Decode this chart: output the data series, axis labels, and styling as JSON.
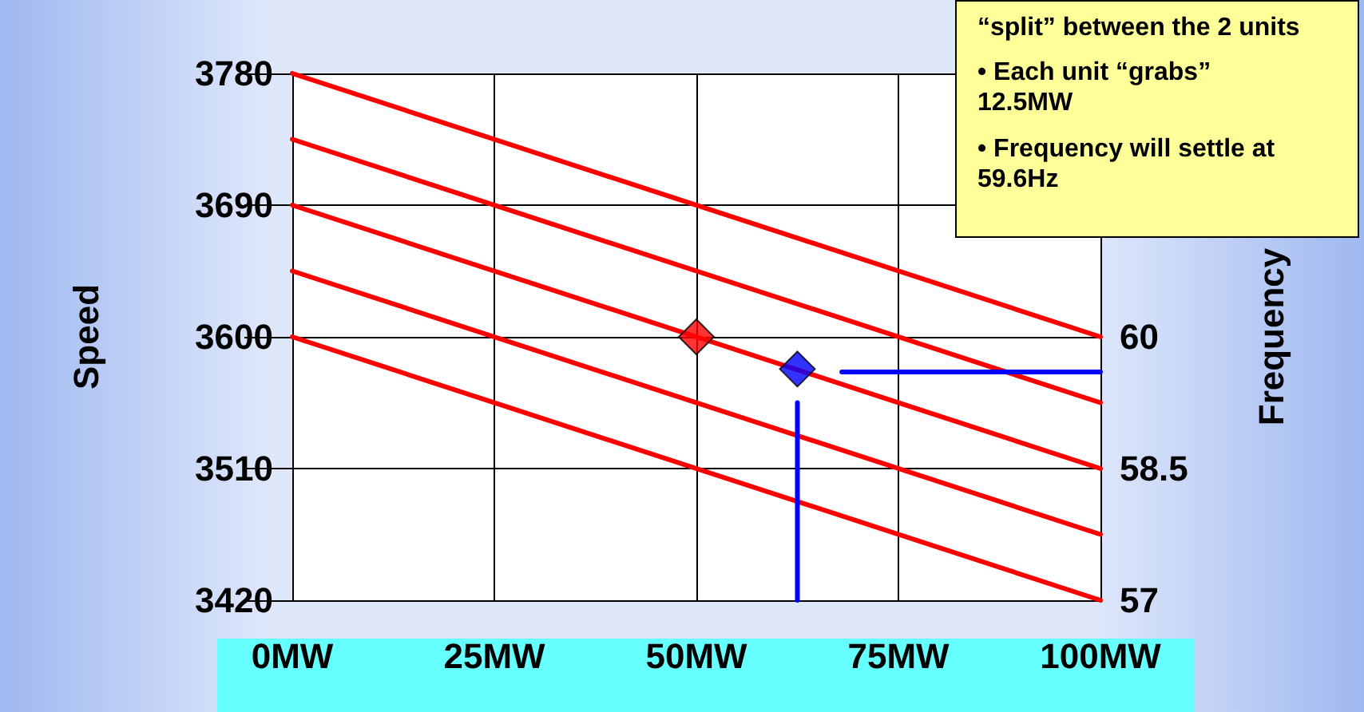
{
  "chart_data": {
    "type": "line",
    "ylabel": "Speed",
    "y2label": "Frequency",
    "annotations": [
      "“split” between the 2 units",
      "• Each unit “grabs” 12.5MW",
      "• Frequency will settle at 59.6Hz"
    ],
    "xlim": [
      0,
      100
    ],
    "xticks": [
      {
        "value": 0,
        "label": "0MW"
      },
      {
        "value": 25,
        "label": "25MW"
      },
      {
        "value": 50,
        "label": "50MW"
      },
      {
        "value": 75,
        "label": "75MW"
      },
      {
        "value": 100,
        "label": "100MW"
      }
    ],
    "ylim": [
      3420,
      3780
    ],
    "yticks": [
      3420,
      3510,
      3600,
      3690,
      3780
    ],
    "y2lim": [
      57,
      63
    ],
    "y2ticks": [
      57,
      58.5,
      60
    ],
    "grid": true,
    "line_style": "solid",
    "series": [
      {
        "color": "#ff0000",
        "x": [
          0,
          100
        ],
        "values": [
          3780,
          3600
        ]
      },
      {
        "color": "#ff0000",
        "x": [
          0,
          100
        ],
        "values": [
          3735,
          3555
        ]
      },
      {
        "color": "#ff0000",
        "x": [
          0,
          100
        ],
        "values": [
          3690,
          3510
        ]
      },
      {
        "color": "#ff0000",
        "x": [
          0,
          100
        ],
        "values": [
          3645,
          3465
        ]
      },
      {
        "color": "#ff0000",
        "x": [
          0,
          100
        ],
        "values": [
          3600,
          3420
        ]
      },
      {
        "color": "#0000ff",
        "x": [
          68,
          100
        ],
        "values": [
          59.6,
          59.6
        ],
        "axis": "y2"
      },
      {
        "color": "#0000ff",
        "x": [
          62.5,
          62.5
        ],
        "values": [
          3555,
          3420
        ]
      },
      {
        "type": "scatter",
        "color": "#ff0000",
        "marker": "diamond",
        "x": [
          50
        ],
        "values": [
          3600
        ]
      },
      {
        "type": "scatter",
        "color": "#0000ff",
        "marker": "diamond",
        "x": [
          62.5
        ],
        "values": [
          3578
        ]
      }
    ]
  }
}
